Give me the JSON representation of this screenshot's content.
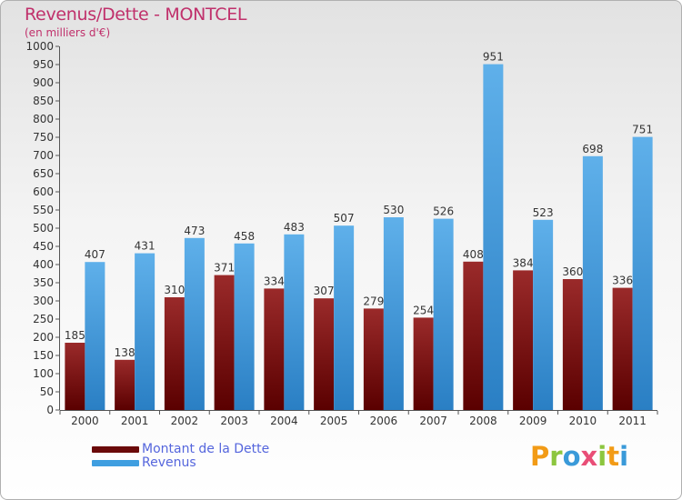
{
  "header": {
    "title": "Revenus/Dette - MONTCEL",
    "subtitle": "(en milliers d'€)"
  },
  "legend": {
    "items": [
      {
        "label": "Montant de la Dette",
        "color": "#6b0a0a"
      },
      {
        "label": "Revenus",
        "color": "#3f9ee0"
      }
    ]
  },
  "logo": {
    "text": "Proxiti"
  },
  "colors": {
    "debt_top": "#9a2a2a",
    "debt_bottom": "#5a0000",
    "rev_top": "#5fb0ea",
    "rev_bottom": "#2a7fc4",
    "title": "#c0306b",
    "legend_text": "#5566dd"
  },
  "chart_data": {
    "type": "bar",
    "title": "Revenus/Dette - MONTCEL",
    "ylabel": "(en milliers d'€)",
    "categories": [
      "2000",
      "2001",
      "2002",
      "2003",
      "2004",
      "2005",
      "2006",
      "2007",
      "2008",
      "2009",
      "2010",
      "2011"
    ],
    "series": [
      {
        "name": "Montant de la Dette",
        "values": [
          185,
          138,
          310,
          371,
          334,
          307,
          279,
          254,
          408,
          384,
          360,
          336
        ]
      },
      {
        "name": "Revenus",
        "values": [
          407,
          431,
          473,
          458,
          483,
          507,
          530,
          526,
          951,
          523,
          698,
          751
        ]
      }
    ],
    "ylim": [
      0,
      1000
    ],
    "ytick_step": 50,
    "grid": false,
    "legend_position": "bottom-left"
  }
}
